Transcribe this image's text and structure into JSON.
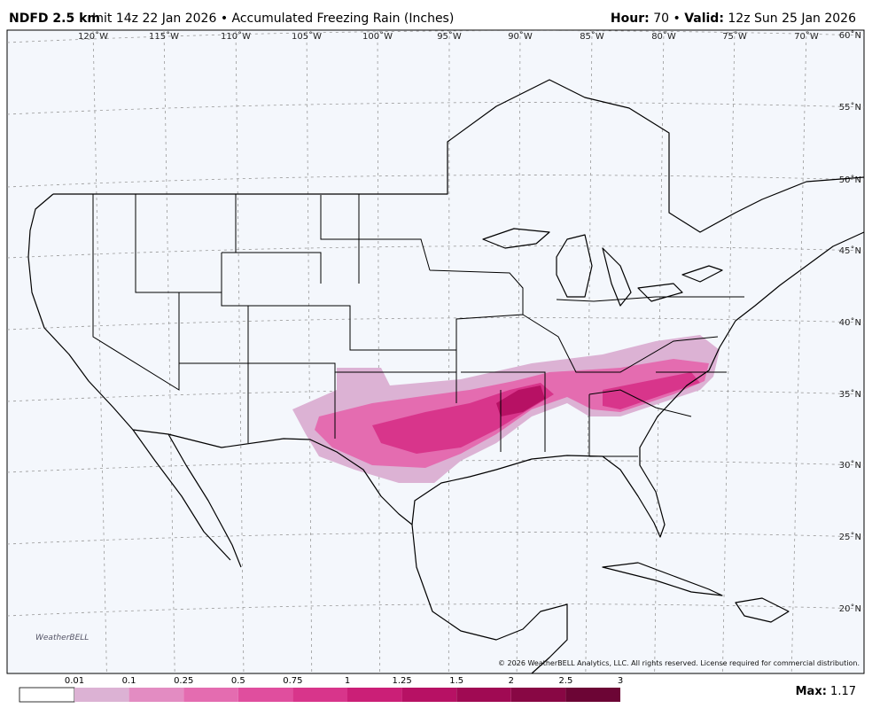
{
  "header": {
    "model": "NDFD 2.5 km",
    "description": "Init 14z 22 Jan 2026 • Accumulated Freezing Rain (Inches)",
    "hour_label": "Hour:",
    "hour": 70,
    "separator": "•",
    "valid_label": "Valid:",
    "valid": "12z Sun 25 Jan 2026"
  },
  "map": {
    "lon_labels": [
      "120˚W",
      "115˚W",
      "110˚W",
      "105˚W",
      "100˚W",
      "95˚W",
      "90˚W",
      "85˚W",
      "80˚W",
      "75˚W",
      "70˚W"
    ],
    "lat_labels": [
      "60˚N",
      "55˚N",
      "50˚N",
      "45˚N",
      "40˚N",
      "35˚N",
      "30˚N",
      "25˚N",
      "20˚N"
    ],
    "logo": "WeatherBELL",
    "copyright": "© 2026 WeatherBELL Analytics, LLC. All rights reserved. License required for commercial distribution."
  },
  "colorbar": {
    "ticks": [
      0.01,
      0.1,
      0.25,
      0.5,
      0.75,
      1,
      1.25,
      1.5,
      2,
      2.5,
      3
    ],
    "colors": [
      "#dcb2d4",
      "#e38cc2",
      "#e46cb0",
      "#e04e9e",
      "#d8358b",
      "#cb1f77",
      "#b71164",
      "#a00a53",
      "#880744",
      "#6c0535"
    ]
  },
  "max": {
    "label": "Max:",
    "value": 1.17
  }
}
